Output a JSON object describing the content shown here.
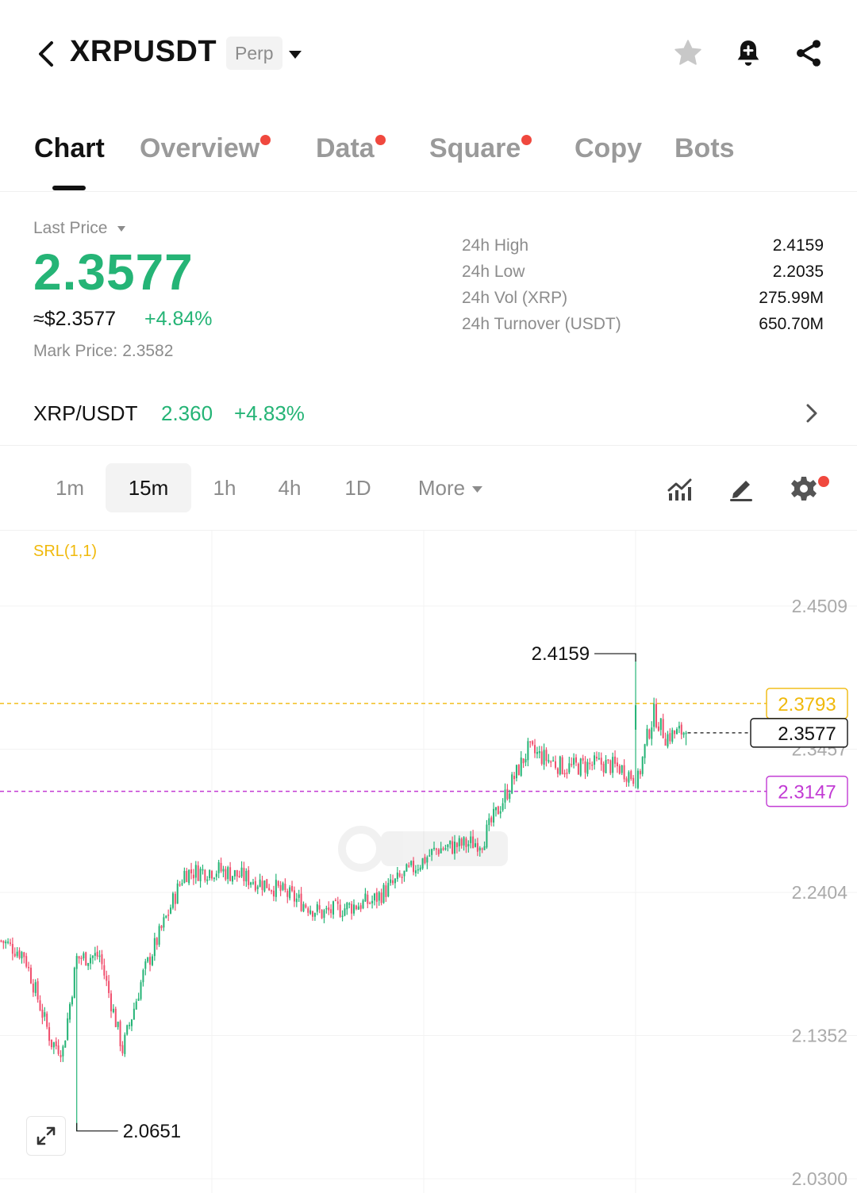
{
  "header": {
    "symbol": "XRPUSDT",
    "contract_badge": "Perp",
    "icons": [
      "back-icon",
      "caret-down-icon",
      "star-icon",
      "bell-plus-icon",
      "share-icon"
    ]
  },
  "tabs": [
    {
      "label": "Chart",
      "active": true,
      "dot": false
    },
    {
      "label": "Overview",
      "active": false,
      "dot": true
    },
    {
      "label": "Data",
      "active": false,
      "dot": true
    },
    {
      "label": "Square",
      "active": false,
      "dot": true
    },
    {
      "label": "Copy",
      "active": false,
      "dot": false
    },
    {
      "label": "Bots",
      "active": false,
      "dot": false
    }
  ],
  "price": {
    "label": "Last Price",
    "last": "2.3577",
    "usd": "≈$2.3577",
    "change": "+4.84%",
    "mark_label": "Mark Price:",
    "mark_value": "2.3582"
  },
  "stats": [
    {
      "label": "24h High",
      "value": "2.4159"
    },
    {
      "label": "24h Low",
      "value": "2.2035"
    },
    {
      "label": "24h Vol (XRP)",
      "value": "275.99M"
    },
    {
      "label": "24h Turnover (USDT)",
      "value": "650.70M"
    }
  ],
  "spot": {
    "pair": "XRP/USDT",
    "price": "2.360",
    "change": "+4.83%"
  },
  "intervals": [
    {
      "label": "1m",
      "active": false
    },
    {
      "label": "15m",
      "active": true
    },
    {
      "label": "1h",
      "active": false
    },
    {
      "label": "4h",
      "active": false
    },
    {
      "label": "1D",
      "active": false
    }
  ],
  "more_label": "More",
  "colors": {
    "up": "#25b476",
    "down": "#f0506e",
    "accent_yellow": "#f0b90b",
    "support_purple": "#c23bd4",
    "text_primary": "#121212",
    "text_secondary": "#8c8c8c"
  },
  "chart_data": {
    "type": "candlestick",
    "indicator": "SRL(1,1)",
    "y_ticks": [
      "2.4509",
      "2.3457",
      "2.2404",
      "2.1352",
      "2.0300"
    ],
    "ylim": [
      2.03,
      2.4509
    ],
    "current_price": "2.3577",
    "resistance": "2.3793",
    "support": "2.3147",
    "high_marker": "2.4159",
    "low_marker": "2.0651",
    "close_anchors": [
      [
        0,
        2.205
      ],
      [
        10,
        2.195
      ],
      [
        22,
        2.13
      ],
      [
        27,
        2.125
      ],
      [
        33,
        2.192
      ],
      [
        43,
        2.194
      ],
      [
        53,
        2.125
      ],
      [
        62,
        2.18
      ],
      [
        80,
        2.255
      ],
      [
        95,
        2.257
      ],
      [
        117,
        2.246
      ],
      [
        140,
        2.225
      ],
      [
        162,
        2.234
      ],
      [
        190,
        2.272
      ],
      [
        210,
        2.278
      ],
      [
        230,
        2.345
      ],
      [
        246,
        2.332
      ],
      [
        262,
        2.335
      ],
      [
        270,
        2.332
      ],
      [
        278,
        2.323
      ],
      [
        282,
        2.354
      ],
      [
        285,
        2.372
      ],
      [
        290,
        2.355
      ],
      [
        300,
        2.36
      ]
    ],
    "candle_count": 300,
    "high_index": 277,
    "low_index": 33
  }
}
